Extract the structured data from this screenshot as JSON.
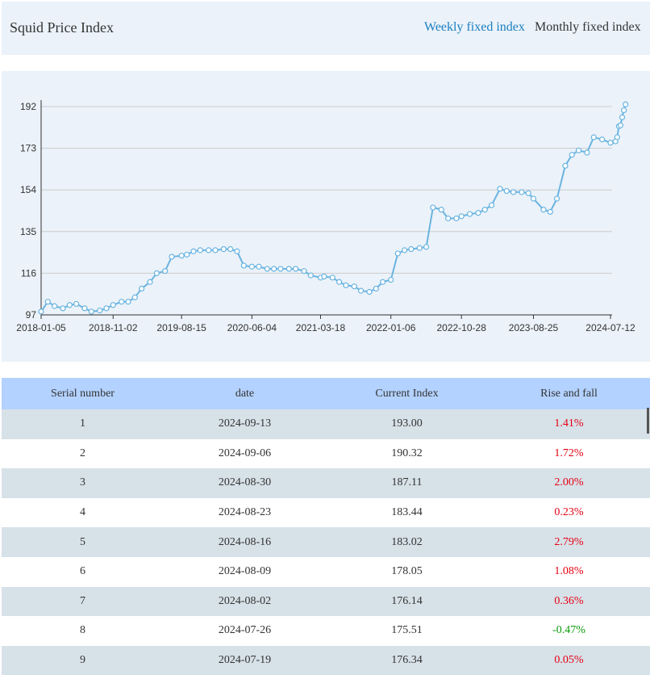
{
  "header": {
    "title": "Squid Price Index",
    "tabs": [
      {
        "label": "Weekly fixed index",
        "active": true
      },
      {
        "label": "Monthly fixed index",
        "active": false
      }
    ]
  },
  "colors": {
    "header_bg": "#ebf2f9",
    "accent": "#1a7fc1",
    "line": "#6ab4e0",
    "rise": "#e60012",
    "fall": "#0a9b0a",
    "table_header_bg": "#b3d2ff",
    "row_alt_bg": "#d7e1e8"
  },
  "chart_data": {
    "type": "line",
    "title": "",
    "xlabel": "",
    "ylabel": "",
    "ylim": [
      97,
      192
    ],
    "yticks": [
      97,
      116,
      135,
      154,
      173,
      192
    ],
    "xticks": [
      "2018-01-05",
      "2018-11-02",
      "2019-08-15",
      "2020-06-04",
      "2021-03-18",
      "2022-01-06",
      "2022-10-28",
      "2023-08-25",
      "2024-07-12"
    ],
    "grid": true,
    "legend": "none",
    "x": [
      "2018-01-05",
      "2018-02-02",
      "2018-03-02",
      "2018-04-06",
      "2018-05-04",
      "2018-06-01",
      "2018-07-06",
      "2018-08-03",
      "2018-09-07",
      "2018-10-05",
      "2018-11-02",
      "2018-12-07",
      "2019-01-04",
      "2019-02-01",
      "2019-03-01",
      "2019-04-05",
      "2019-05-03",
      "2019-06-07",
      "2019-07-05",
      "2019-08-15",
      "2019-09-06",
      "2019-10-04",
      "2019-11-01",
      "2019-12-06",
      "2020-01-03",
      "2020-02-07",
      "2020-03-06",
      "2020-04-03",
      "2020-05-01",
      "2020-06-04",
      "2020-07-03",
      "2020-08-07",
      "2020-09-04",
      "2020-10-02",
      "2020-11-06",
      "2020-12-04",
      "2021-01-08",
      "2021-02-05",
      "2021-03-18",
      "2021-04-02",
      "2021-05-07",
      "2021-06-04",
      "2021-07-02",
      "2021-08-06",
      "2021-09-03",
      "2021-10-08",
      "2021-11-05",
      "2021-12-03",
      "2022-01-06",
      "2022-02-04",
      "2022-03-04",
      "2022-04-01",
      "2022-05-06",
      "2022-06-03",
      "2022-07-01",
      "2022-08-05",
      "2022-09-02",
      "2022-10-07",
      "2022-10-28",
      "2022-12-02",
      "2023-01-06",
      "2023-02-03",
      "2023-03-03",
      "2023-04-07",
      "2023-05-05",
      "2023-06-02",
      "2023-07-07",
      "2023-08-04",
      "2023-08-25",
      "2023-10-06",
      "2023-11-03",
      "2023-12-01",
      "2024-01-05",
      "2024-02-02",
      "2024-03-01",
      "2024-04-05",
      "2024-05-03",
      "2024-06-07",
      "2024-07-12",
      "2024-08-02",
      "2024-08-09",
      "2024-08-16",
      "2024-08-23",
      "2024-08-30",
      "2024-09-06",
      "2024-09-13"
    ],
    "series": [
      {
        "values": [
          98.5,
          103,
          101,
          100,
          101.5,
          102,
          100,
          98.5,
          99,
          100,
          101.5,
          103,
          103,
          105,
          109,
          112,
          116,
          117,
          123.5,
          124,
          124.5,
          126,
          126.5,
          126.5,
          126.5,
          127,
          127,
          126,
          119.5,
          119,
          119,
          118,
          118,
          118,
          118,
          118,
          117,
          115,
          114,
          114.5,
          114,
          112,
          110.5,
          110,
          108,
          107.5,
          109,
          112,
          113,
          125,
          126.5,
          127,
          127.5,
          128,
          146,
          145,
          141,
          141,
          142,
          143,
          143.5,
          145,
          147,
          154.5,
          153.5,
          153,
          153,
          152.5,
          150,
          145,
          144,
          150,
          165,
          170,
          172,
          171,
          178,
          177,
          175.51,
          176.14,
          178.05,
          183.02,
          183.44,
          187.11,
          190.32,
          193
        ]
      }
    ]
  },
  "table": {
    "headers": [
      "Serial number",
      "date",
      "Current Index",
      "Rise and fall"
    ],
    "rows": [
      {
        "n": "1",
        "date": "2024-09-13",
        "index": "193.00",
        "change": "1.41%",
        "dir": "up"
      },
      {
        "n": "2",
        "date": "2024-09-06",
        "index": "190.32",
        "change": "1.72%",
        "dir": "up"
      },
      {
        "n": "3",
        "date": "2024-08-30",
        "index": "187.11",
        "change": "2.00%",
        "dir": "up"
      },
      {
        "n": "4",
        "date": "2024-08-23",
        "index": "183.44",
        "change": "0.23%",
        "dir": "up"
      },
      {
        "n": "5",
        "date": "2024-08-16",
        "index": "183.02",
        "change": "2.79%",
        "dir": "up"
      },
      {
        "n": "6",
        "date": "2024-08-09",
        "index": "178.05",
        "change": "1.08%",
        "dir": "up"
      },
      {
        "n": "7",
        "date": "2024-08-02",
        "index": "176.14",
        "change": "0.36%",
        "dir": "up"
      },
      {
        "n": "8",
        "date": "2024-07-26",
        "index": "175.51",
        "change": "-0.47%",
        "dir": "down"
      },
      {
        "n": "9",
        "date": "2024-07-19",
        "index": "176.34",
        "change": "0.05%",
        "dir": "up"
      }
    ]
  }
}
